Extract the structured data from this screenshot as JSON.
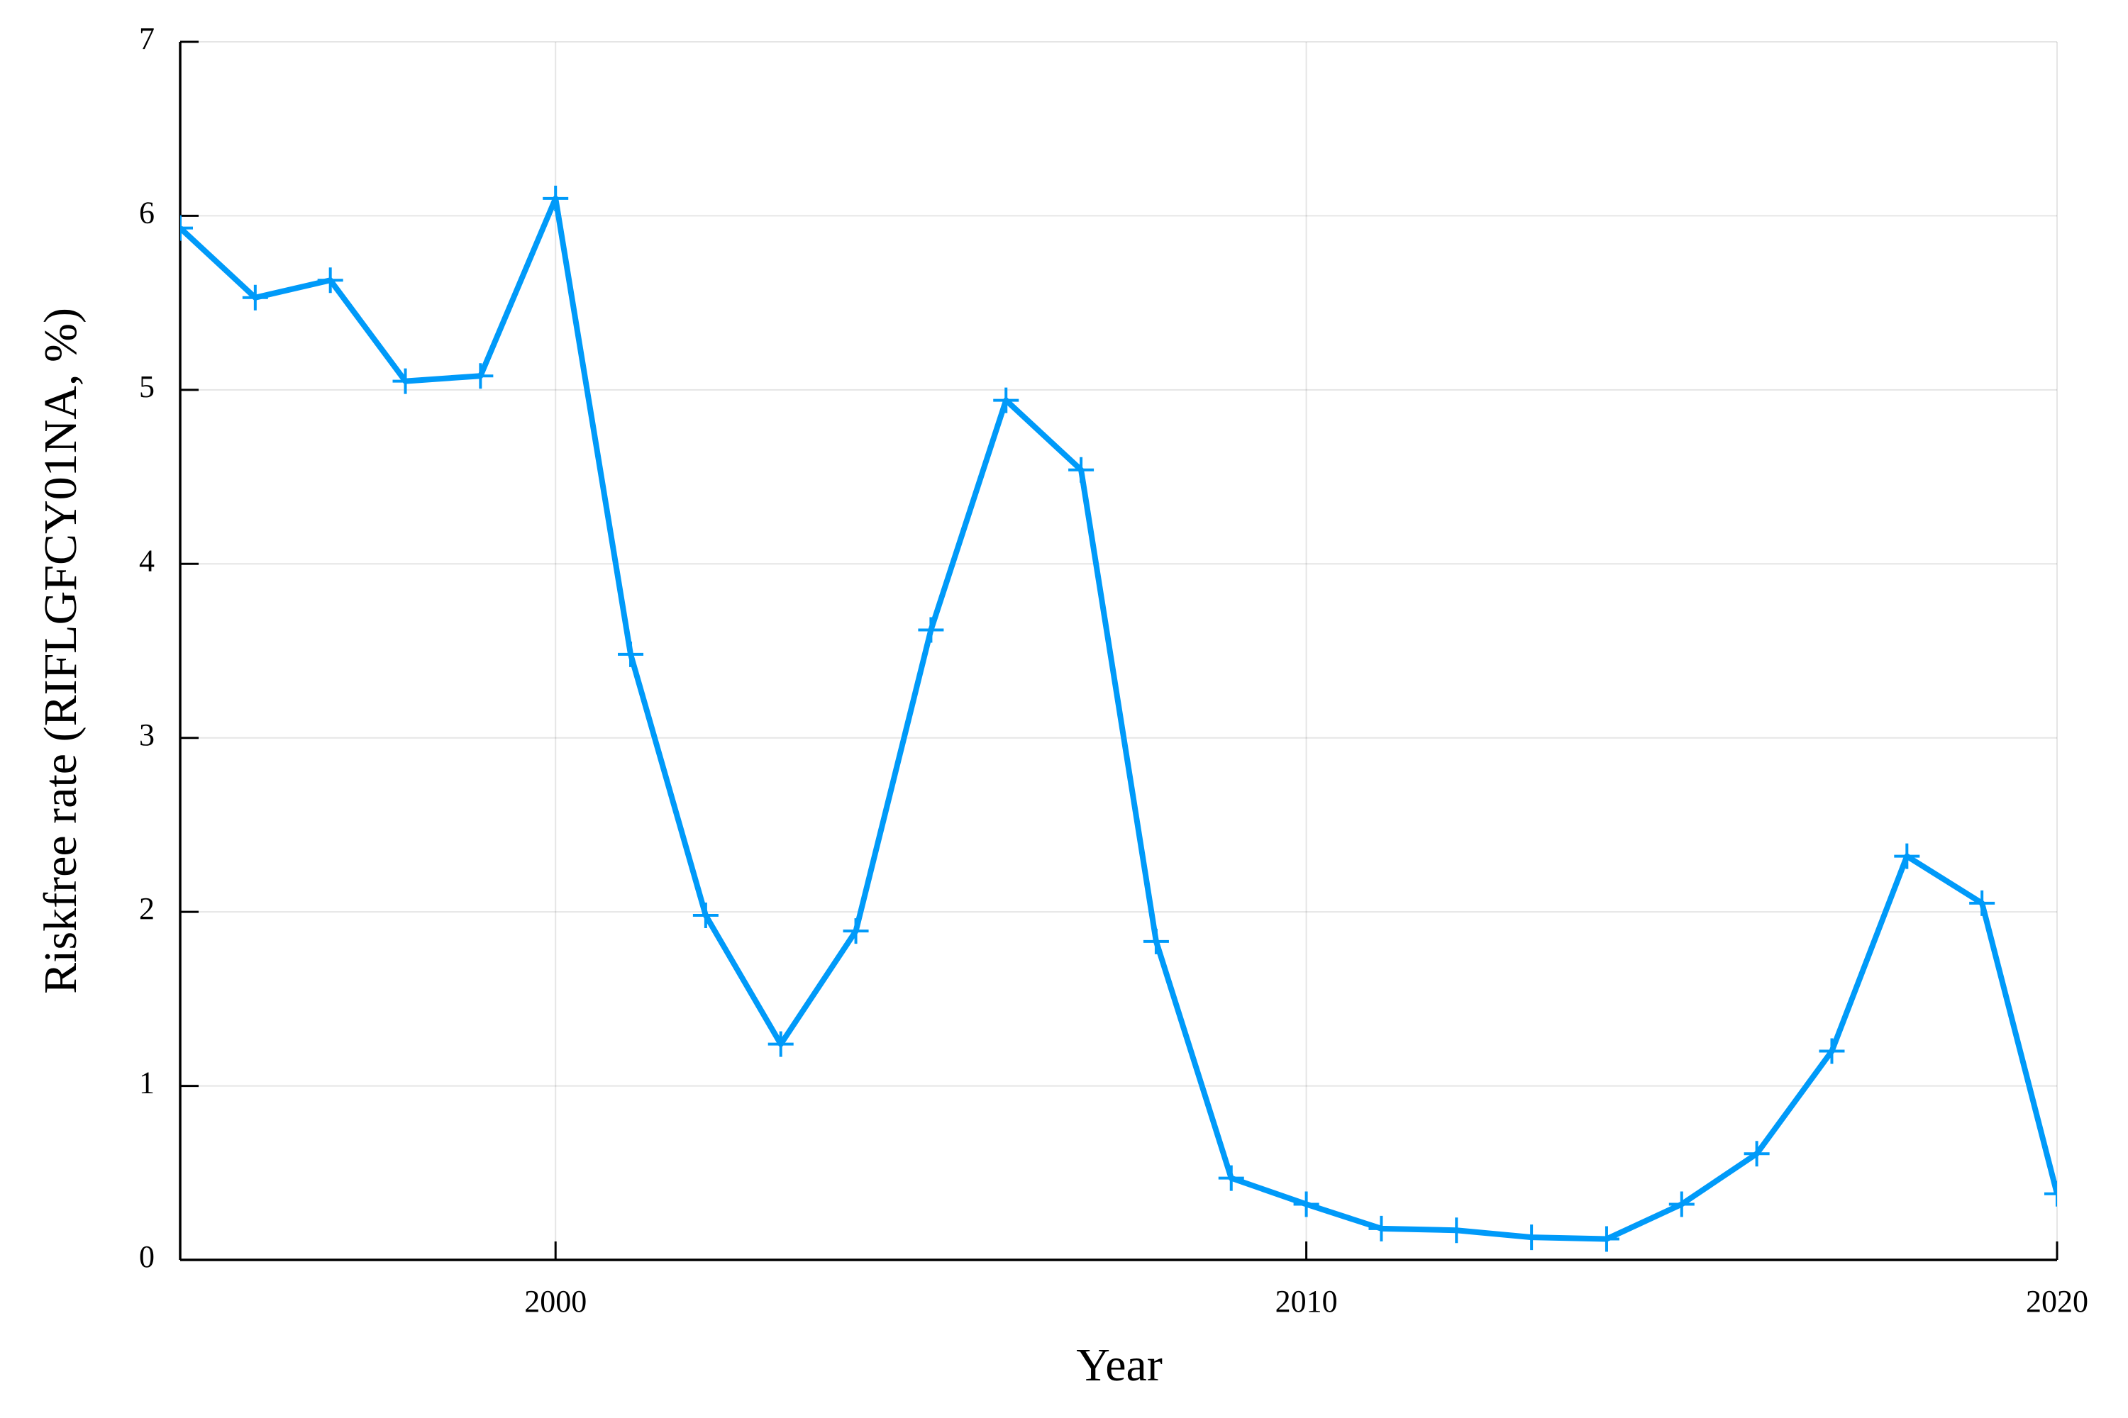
{
  "chart_data": {
    "type": "line",
    "xlabel": "Year",
    "ylabel": "Riskfree rate (RIFLGFCY01NA, %)",
    "x": [
      1995,
      1996,
      1997,
      1998,
      1999,
      2000,
      2001,
      2002,
      2003,
      2004,
      2005,
      2006,
      2007,
      2008,
      2009,
      2010,
      2011,
      2012,
      2013,
      2014,
      2015,
      2016,
      2017,
      2018,
      2019,
      2020
    ],
    "series": [
      {
        "color": "#009af9",
        "marker": "+",
        "values": [
          5.93,
          5.53,
          5.63,
          5.05,
          5.08,
          6.1,
          3.48,
          1.98,
          1.24,
          1.89,
          3.62,
          4.94,
          4.54,
          1.83,
          0.47,
          0.32,
          0.18,
          0.17,
          0.13,
          0.12,
          0.32,
          0.61,
          1.2,
          2.32,
          2.05,
          0.38
        ]
      }
    ],
    "xlim": [
      1995,
      2020
    ],
    "xticks": [
      2000,
      2010,
      2020
    ],
    "ylim": [
      0,
      7
    ],
    "yticks": [
      0,
      1,
      2,
      3,
      4,
      5,
      6,
      7
    ],
    "grid": true
  }
}
